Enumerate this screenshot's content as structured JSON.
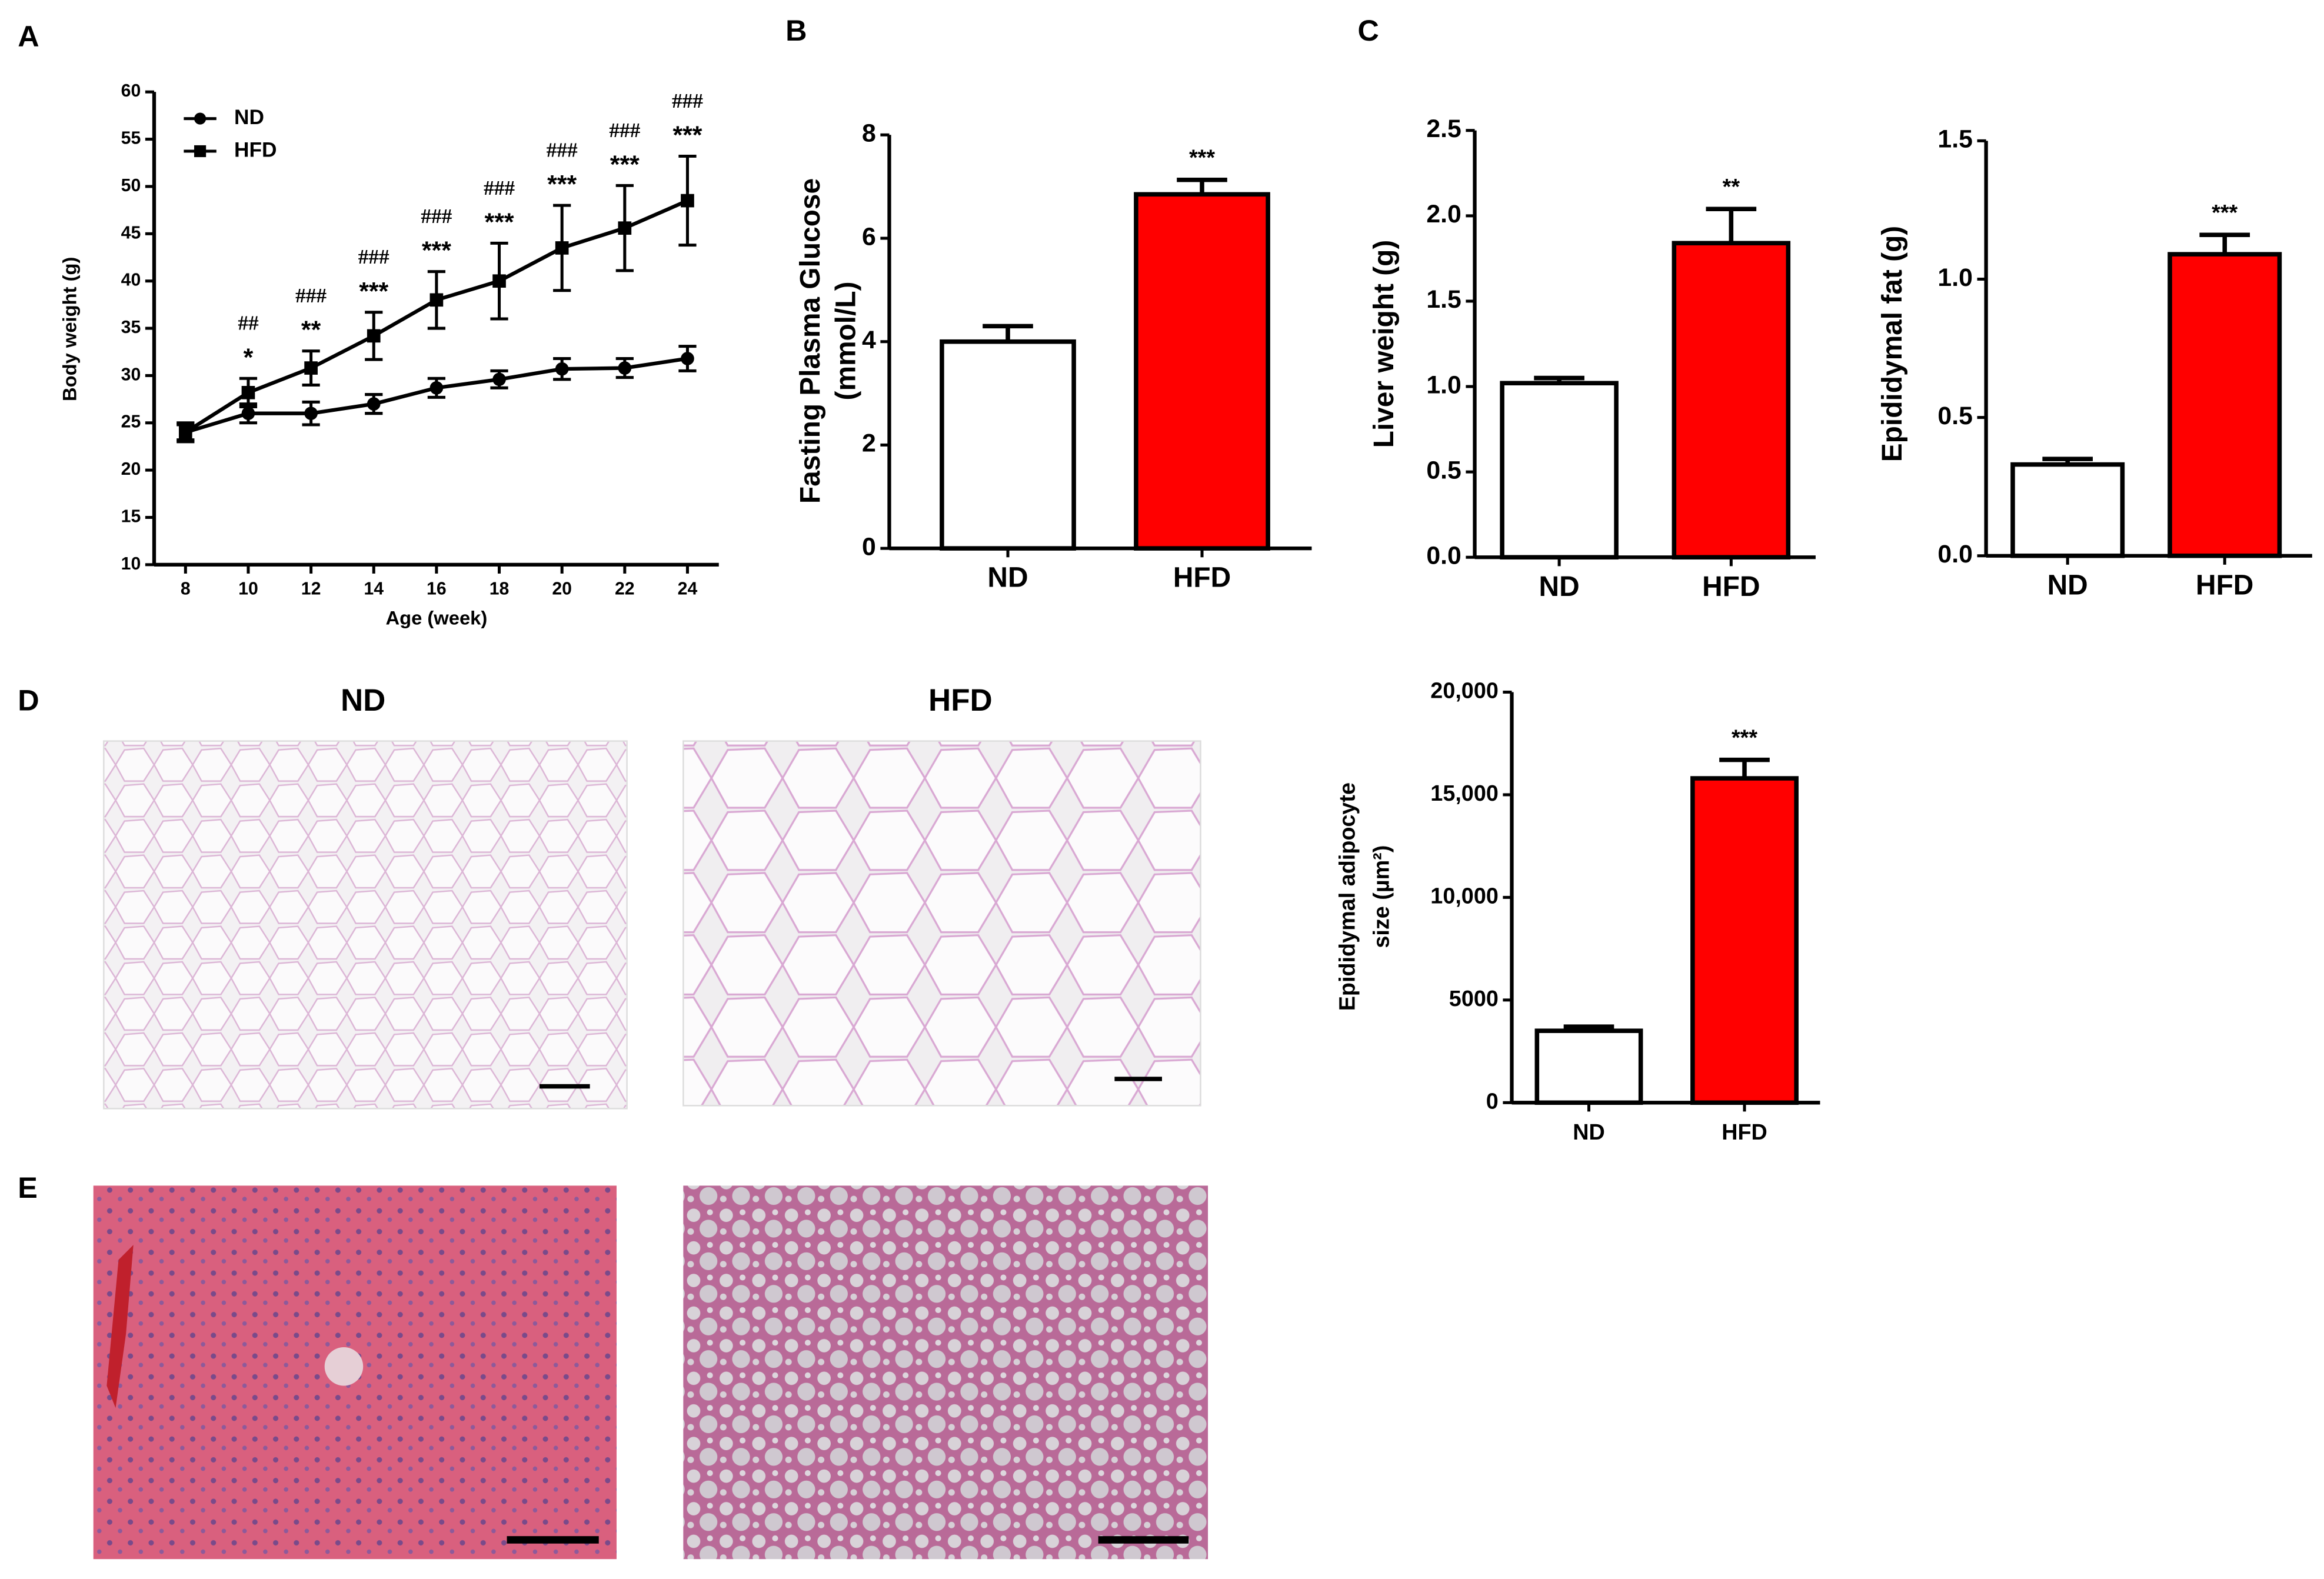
{
  "panel_labels": [
    "A",
    "B",
    "C",
    "D",
    "E"
  ],
  "image_titles": [
    "ND",
    "HFD"
  ],
  "chart_data": [
    {
      "type": "line",
      "xlabel": "Age (week)",
      "ylabel": [
        "Body weight (g)"
      ],
      "x": [
        8,
        10,
        12,
        14,
        16,
        18,
        20,
        22,
        24
      ],
      "xlim": [
        7,
        25
      ],
      "xticks": [
        8,
        10,
        12,
        14,
        16,
        18,
        20,
        22,
        24
      ],
      "ylim": [
        10,
        60
      ],
      "yticks": [
        10,
        15,
        20,
        25,
        30,
        35,
        40,
        45,
        50,
        55,
        60
      ],
      "series": [
        {
          "name": "ND",
          "color": "#000000",
          "marker": "circle",
          "values": [
            24,
            26,
            26,
            27,
            28.7,
            29.6,
            30.7,
            30.8,
            31.8
          ],
          "errors": [
            1,
            1,
            1.2,
            1,
            1,
            0.9,
            1.1,
            1,
            1.3
          ]
        },
        {
          "name": "HFD",
          "color": "#000000",
          "marker": "square",
          "values": [
            24,
            28.2,
            30.8,
            34.2,
            38,
            40,
            43.5,
            45.6,
            48.5
          ],
          "errors": [
            0.8,
            1.5,
            1.8,
            2.5,
            3,
            4,
            4.5,
            4.5,
            4.7
          ]
        }
      ],
      "sig_star": [
        null,
        "*",
        "**",
        "***",
        "***",
        "***",
        "***",
        "***",
        "***"
      ],
      "sig_hash": [
        null,
        "##",
        "###",
        "###",
        "###",
        "###",
        "###",
        "###",
        "###"
      ]
    },
    {
      "type": "bar",
      "ylabel": [
        "Fasting Plasma Glucose",
        "(mmol/L)"
      ],
      "categories": [
        "ND",
        "HFD"
      ],
      "values": [
        4.0,
        6.85
      ],
      "errors": [
        0.3,
        0.28
      ],
      "colors": [
        "#ffffff",
        "#ff0000"
      ],
      "annotations": [
        null,
        "***"
      ],
      "ylim": [
        0,
        8
      ],
      "yticks": [
        0,
        2,
        4,
        6,
        8
      ]
    },
    {
      "type": "bar",
      "ylabel": [
        "Liver weight (g)"
      ],
      "categories": [
        "ND",
        "HFD"
      ],
      "values": [
        1.02,
        1.84
      ],
      "errors": [
        0.03,
        0.2
      ],
      "colors": [
        "#ffffff",
        "#ff0000"
      ],
      "annotations": [
        null,
        "**"
      ],
      "ylim": [
        0,
        2.5
      ],
      "yticks": [
        {
          "value": 0,
          "label": "0.0"
        },
        0.5,
        {
          "value": 1,
          "label": "1.0"
        },
        1.5,
        {
          "value": 2,
          "label": "2.0"
        },
        2.5
      ]
    },
    {
      "type": "bar",
      "ylabel": [
        "Epididymal fat (g)"
      ],
      "categories": [
        "ND",
        "HFD"
      ],
      "values": [
        0.33,
        1.09
      ],
      "errors": [
        0.02,
        0.07
      ],
      "colors": [
        "#ffffff",
        "#ff0000"
      ],
      "annotations": [
        null,
        "***"
      ],
      "ylim": [
        0,
        1.5
      ],
      "yticks": [
        {
          "value": 0,
          "label": "0.0"
        },
        0.5,
        {
          "value": 1,
          "label": "1.0"
        },
        1.5
      ]
    },
    {
      "type": "bar",
      "ylabel": [
        "Epididymal  adipocyte",
        "size (µm²)"
      ],
      "categories": [
        "ND",
        "HFD"
      ],
      "values": [
        3500,
        15800
      ],
      "errors": [
        200,
        900
      ],
      "colors": [
        "#ffffff",
        "#ff0000"
      ],
      "annotations": [
        null,
        "***"
      ],
      "ylim": [
        0,
        20000
      ],
      "yticks": [
        0,
        5000,
        {
          "value": 10000,
          "label": "10,000"
        },
        {
          "value": 15000,
          "label": "15,000"
        },
        {
          "value": 20000,
          "label": "20,000"
        }
      ]
    }
  ]
}
